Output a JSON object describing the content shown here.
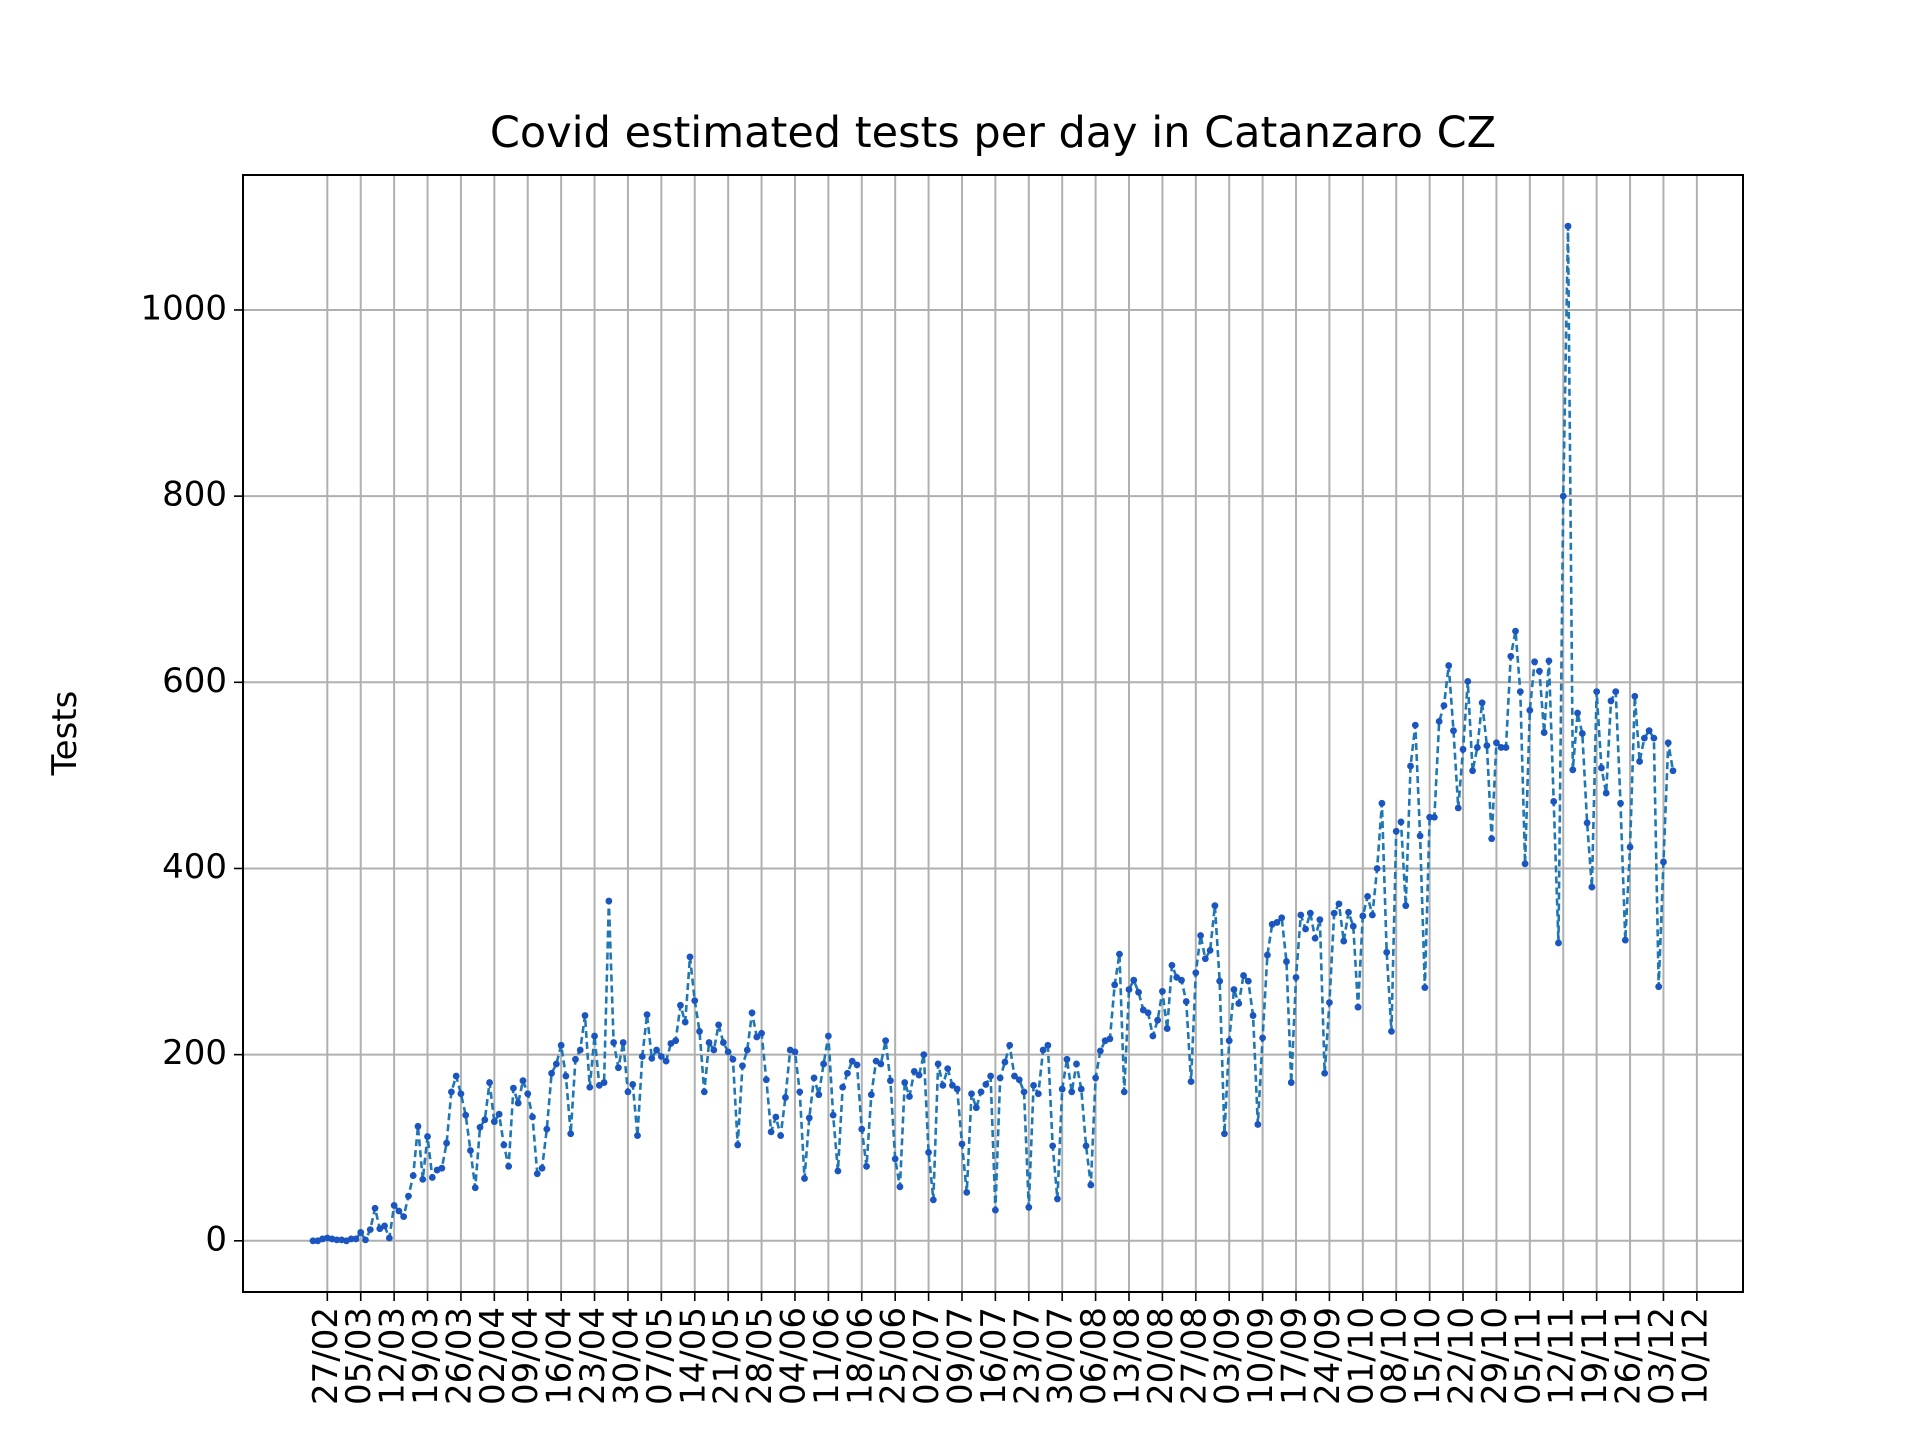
{
  "chart_data": {
    "type": "line",
    "title": "Covid estimated tests per day in Catanzaro CZ",
    "xlabel": "",
    "ylabel": "Tests",
    "x_start": "24/02/2020",
    "x_ticks": [
      "27/02",
      "05/03",
      "12/03",
      "19/03",
      "26/03",
      "02/04",
      "09/04",
      "16/04",
      "23/04",
      "30/04",
      "07/05",
      "14/05",
      "21/05",
      "28/05",
      "04/06",
      "11/06",
      "18/06",
      "25/06",
      "02/07",
      "09/07",
      "16/07",
      "23/07",
      "30/07",
      "06/08",
      "13/08",
      "20/08",
      "27/08",
      "03/09",
      "10/09",
      "17/09",
      "24/09",
      "01/10",
      "08/10",
      "15/10",
      "22/10",
      "29/10",
      "05/11",
      "12/11",
      "19/11",
      "26/11",
      "03/12",
      "10/12"
    ],
    "y_ticks": [
      0,
      200,
      400,
      600,
      800,
      1000
    ],
    "ylim": [
      -55,
      1145
    ],
    "grid": true,
    "line_color": "#1f77b4",
    "marker_color": "#1a55c0",
    "series": [
      {
        "values": [
          0,
          0,
          2,
          3,
          2,
          1,
          1,
          0,
          2,
          2,
          9,
          1,
          12,
          35,
          13,
          16,
          3,
          38,
          32,
          26,
          48,
          70,
          123,
          66,
          112,
          68,
          76,
          78,
          105,
          160,
          177,
          158,
          135,
          97,
          57,
          122,
          130,
          170,
          128,
          136,
          103,
          80,
          164,
          148,
          172,
          158,
          133,
          72,
          78,
          120,
          180,
          190,
          210,
          177,
          115,
          195,
          205,
          242,
          165,
          220,
          167,
          170,
          365,
          213,
          186,
          213,
          160,
          168,
          113,
          198,
          243,
          196,
          205,
          198,
          193,
          212,
          215,
          253,
          235,
          305,
          258,
          225,
          160,
          213,
          205,
          232,
          213,
          203,
          195,
          103,
          188,
          205,
          245,
          219,
          223,
          173,
          117,
          133,
          113,
          154,
          205,
          203,
          160,
          67,
          132,
          175,
          157,
          190,
          220,
          135,
          75,
          165,
          180,
          193,
          189,
          120,
          80,
          157,
          193,
          190,
          215,
          172,
          88,
          58,
          170,
          155,
          182,
          178,
          200,
          95,
          44,
          190,
          167,
          185,
          167,
          163,
          104,
          52,
          158,
          143,
          160,
          168,
          177,
          33,
          175,
          192,
          210,
          177,
          173,
          160,
          36,
          167,
          158,
          205,
          210,
          102,
          45,
          163,
          195,
          160,
          190,
          163,
          102,
          60,
          175,
          204,
          215,
          217,
          275,
          308,
          160,
          270,
          280,
          267,
          248,
          245,
          220,
          237,
          268,
          228,
          296,
          283,
          280,
          257,
          171,
          288,
          328,
          303,
          312,
          360,
          279,
          115,
          215,
          270,
          255,
          285,
          279,
          242,
          125,
          218,
          307,
          340,
          342,
          347,
          300,
          170,
          283,
          350,
          335,
          352,
          325,
          345,
          180,
          256,
          352,
          362,
          322,
          353,
          338,
          251,
          349,
          370,
          350,
          400,
          470,
          310,
          225,
          440,
          450,
          360,
          510,
          554,
          435,
          272,
          455,
          455,
          558,
          575,
          618,
          548,
          465,
          528,
          601,
          505,
          530,
          578,
          532,
          432,
          535,
          530,
          530,
          628,
          655,
          590,
          405,
          570,
          622,
          612,
          546,
          623,
          472,
          320,
          800,
          1090,
          506,
          567,
          545,
          449,
          380,
          590,
          508,
          481,
          580,
          590,
          470,
          323,
          423,
          585,
          515,
          540,
          548,
          540,
          273,
          407,
          535,
          505
        ]
      }
    ]
  }
}
